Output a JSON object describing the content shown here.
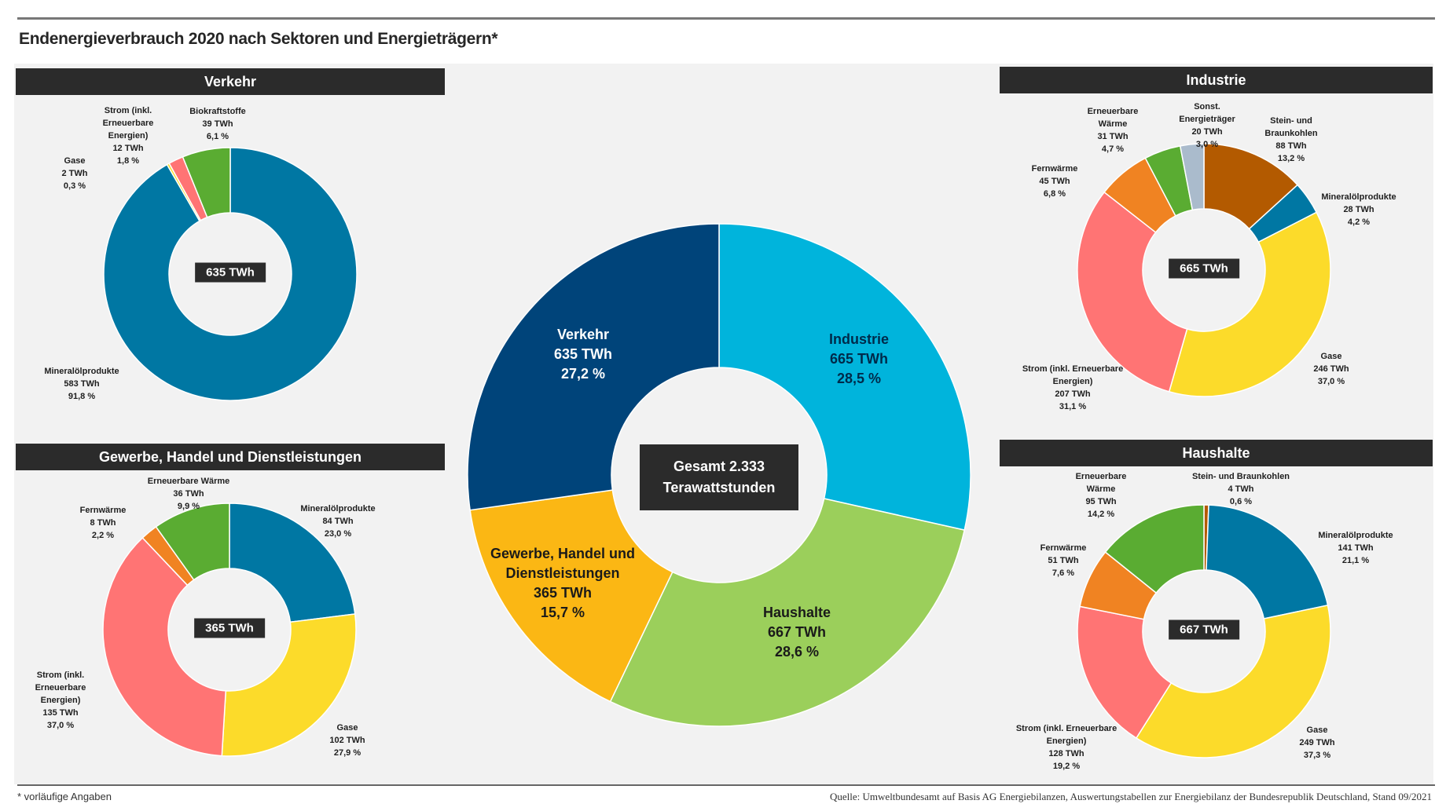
{
  "title": "Endenergieverbrauch 2020 nach Sektoren und Energieträgern*",
  "footnote": "* vorläufige Angaben",
  "source": "Quelle: Umweltbundesamt auf Basis AG Energiebilanzen, Auswertungstabellen zur Energiebilanz der Bundesrepublik Deutschland, Stand 09/2021",
  "colors": {
    "Mineralölprodukte": "#0077a3",
    "Gase": "#fcdb2a",
    "Strom": "#ff7474",
    "Biokraftstoffe": "#5aac32",
    "Erneuerbare Wärme": "#5aac32",
    "Fernwärme": "#f08322",
    "Stein- und Braunkohlen": "#b35a00",
    "Sonst. Energieträger": "#aabbcc",
    "header": "#2b2b2b",
    "background": "#f2f2f2"
  },
  "chart_data": [
    {
      "type": "pie",
      "title": "Gesamt",
      "center_label": [
        "Gesamt 2.333",
        "Terawattstunden"
      ],
      "unit": "TWh",
      "slices": [
        {
          "name": "Industrie",
          "label_lines": [
            "Industrie"
          ],
          "value": 665,
          "pct": "28,5 %",
          "twh": "665 TWh",
          "color": "#00b4dc",
          "text_color": "#002a4a"
        },
        {
          "name": "Haushalte",
          "label_lines": [
            "Haushalte"
          ],
          "value": 667,
          "pct": "28,6 %",
          "twh": "667 TWh",
          "color": "#9bcf5b",
          "text_color": "#1a1a1a"
        },
        {
          "name": "Gewerbe, Handel und Dienstleistungen",
          "label_lines": [
            "Gewerbe, Handel und",
            "Dienstleistungen"
          ],
          "value": 365,
          "pct": "15,7 %",
          "twh": "365 TWh",
          "color": "#fbb714",
          "text_color": "#1a1a1a"
        },
        {
          "name": "Verkehr",
          "label_lines": [
            "Verkehr"
          ],
          "value": 635,
          "pct": "27,2 %",
          "twh": "635 TWh",
          "color": "#00447a",
          "text_color": "#ffffff"
        }
      ]
    },
    {
      "type": "pie",
      "title": "Verkehr",
      "total": "635 TWh",
      "slices": [
        {
          "name": "Mineralölprodukte",
          "label_lines": [
            "Mineralölprodukte"
          ],
          "value": 583,
          "twh": "583 TWh",
          "pct": "91,8 %"
        },
        {
          "name": "Gase",
          "label_lines": [
            "Gase"
          ],
          "value": 2,
          "twh": "2 TWh",
          "pct": "0,3 %"
        },
        {
          "name": "Strom",
          "label_lines": [
            "Strom (inkl.",
            "Erneuerbare",
            "Energien)"
          ],
          "value": 12,
          "twh": "12 TWh",
          "pct": "1,8 %"
        },
        {
          "name": "Biokraftstoffe",
          "label_lines": [
            "Biokraftstoffe"
          ],
          "value": 39,
          "twh": "39 TWh",
          "pct": "6,1 %"
        }
      ]
    },
    {
      "type": "pie",
      "title": "Gewerbe, Handel und Dienstleistungen",
      "total": "365 TWh",
      "slices": [
        {
          "name": "Mineralölprodukte",
          "label_lines": [
            "Mineralölprodukte"
          ],
          "value": 84,
          "twh": "84 TWh",
          "pct": "23,0 %"
        },
        {
          "name": "Gase",
          "label_lines": [
            "Gase"
          ],
          "value": 102,
          "twh": "102 TWh",
          "pct": "27,9 %"
        },
        {
          "name": "Strom",
          "label_lines": [
            "Strom (inkl.",
            "Erneuerbare",
            "Energien)"
          ],
          "value": 135,
          "twh": "135 TWh",
          "pct": "37,0 %"
        },
        {
          "name": "Fernwärme",
          "label_lines": [
            "Fernwärme"
          ],
          "value": 8,
          "twh": "8 TWh",
          "pct": "2,2 %"
        },
        {
          "name": "Erneuerbare Wärme",
          "label_lines": [
            "Erneuerbare Wärme"
          ],
          "value": 36,
          "twh": "36 TWh",
          "pct": "9,9 %"
        }
      ]
    },
    {
      "type": "pie",
      "title": "Industrie",
      "total": "665 TWh",
      "slices": [
        {
          "name": "Stein- und Braunkohlen",
          "label_lines": [
            "Stein- und",
            "Braunkohlen"
          ],
          "value": 88,
          "twh": "88 TWh",
          "pct": "13,2 %"
        },
        {
          "name": "Mineralölprodukte",
          "label_lines": [
            "Mineralölprodukte"
          ],
          "value": 28,
          "twh": "28 TWh",
          "pct": "4,2 %"
        },
        {
          "name": "Gase",
          "label_lines": [
            "Gase"
          ],
          "value": 246,
          "twh": "246 TWh",
          "pct": "37,0 %"
        },
        {
          "name": "Strom",
          "label_lines": [
            "Strom (inkl. Erneuerbare",
            "Energien)"
          ],
          "value": 207,
          "twh": "207 TWh",
          "pct": "31,1 %"
        },
        {
          "name": "Fernwärme",
          "label_lines": [
            "Fernwärme"
          ],
          "value": 45,
          "twh": "45 TWh",
          "pct": "6,8 %"
        },
        {
          "name": "Erneuerbare Wärme",
          "label_lines": [
            "Erneuerbare",
            "Wärme"
          ],
          "value": 31,
          "twh": "31 TWh",
          "pct": "4,7 %"
        },
        {
          "name": "Sonst. Energieträger",
          "label_lines": [
            "Sonst.",
            "Energieträger"
          ],
          "value": 20,
          "twh": "20 TWh",
          "pct": "3,0 %"
        }
      ]
    },
    {
      "type": "pie",
      "title": "Haushalte",
      "total": "667 TWh",
      "slices": [
        {
          "name": "Stein- und Braunkohlen",
          "label_lines": [
            "Stein- und Braunkohlen"
          ],
          "value": 4,
          "twh": "4 TWh",
          "pct": "0,6 %"
        },
        {
          "name": "Mineralölprodukte",
          "label_lines": [
            "Mineralölprodukte"
          ],
          "value": 141,
          "twh": "141 TWh",
          "pct": "21,1 %"
        },
        {
          "name": "Gase",
          "label_lines": [
            "Gase"
          ],
          "value": 249,
          "twh": "249 TWh",
          "pct": "37,3 %"
        },
        {
          "name": "Strom",
          "label_lines": [
            "Strom (inkl. Erneuerbare",
            "Energien)"
          ],
          "value": 128,
          "twh": "128 TWh",
          "pct": "19,2 %"
        },
        {
          "name": "Fernwärme",
          "label_lines": [
            "Fernwärme"
          ],
          "value": 51,
          "twh": "51 TWh",
          "pct": "7,6 %"
        },
        {
          "name": "Erneuerbare Wärme",
          "label_lines": [
            "Erneuerbare",
            "Wärme"
          ],
          "value": 95,
          "twh": "95 TWh",
          "pct": "14,2 %"
        }
      ]
    }
  ]
}
